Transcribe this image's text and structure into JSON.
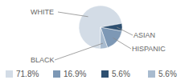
{
  "chart_data": {
    "type": "pie",
    "categories": [
      "WHITE",
      "HISPANIC",
      "ASIAN",
      "BLACK"
    ],
    "values": [
      71.8,
      16.9,
      5.6,
      5.6
    ],
    "value_labels": [
      "71.8%",
      "16.9%",
      "5.6%",
      "5.6%"
    ],
    "colors": [
      "#d3dce6",
      "#7d98b5",
      "#2d4f70",
      "#a8bbcf"
    ],
    "legend": "bottom"
  }
}
